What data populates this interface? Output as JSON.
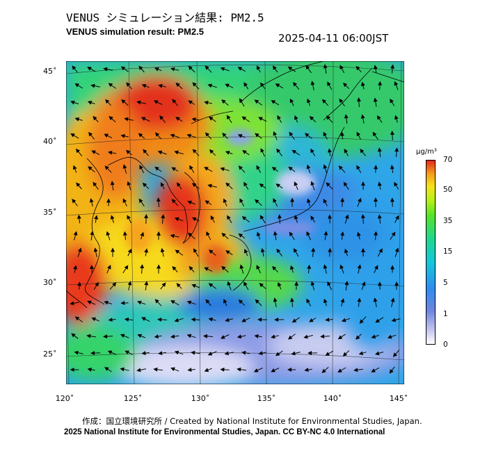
{
  "header": {
    "title_jp": "VENUS シミュレーション結果: PM2.5",
    "title_en": "VENUS simulation result: PM2.5",
    "timestamp": "2025-04-11 06:00JST"
  },
  "map": {
    "lat_labels": [
      "45˚",
      "40˚",
      "35˚",
      "30˚",
      "25˚"
    ],
    "lon_labels": [
      "120˚",
      "125˚",
      "130˚",
      "135˚",
      "140˚",
      "145˚"
    ]
  },
  "colorbar": {
    "unit": "μg/m³",
    "ticks": [
      "70",
      "50",
      "35",
      "15",
      "5",
      "1",
      "0"
    ]
  },
  "footer": {
    "credit": "作成：国立環境研究所 / Created by National Institute for Environmental Studies, Japan.",
    "copyright": "2025 National Institute for Environmental Studies, Japan. CC BY-NC 4.0 International"
  }
}
